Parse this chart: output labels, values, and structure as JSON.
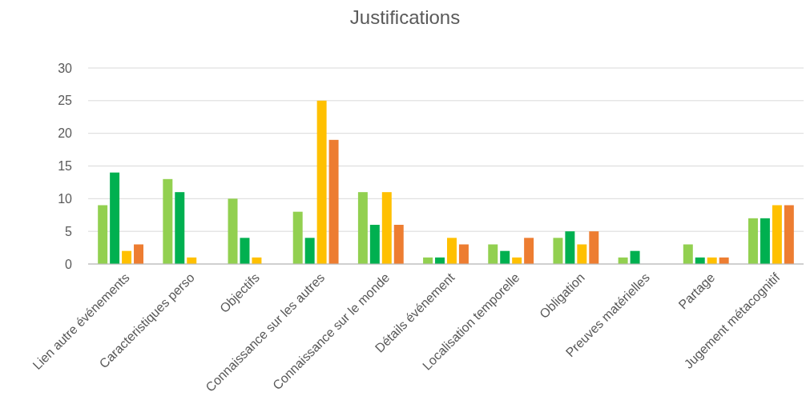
{
  "chart_data": {
    "type": "bar",
    "title": "Justifications",
    "categories": [
      "Lien autre événements",
      "Caracteristiques perso",
      "Objectifs",
      "Connaissance sur les autres",
      "Connaissance sur le monde",
      "Détails événement",
      "Localisation temporelle",
      "Obligation",
      "Preuves matérielles",
      "Partage",
      "Jugement métacognitif"
    ],
    "series": [
      {
        "color": "#92d050",
        "values": [
          9,
          13,
          10,
          8,
          11,
          1,
          3,
          4,
          1,
          3,
          7
        ]
      },
      {
        "color": "#00b050",
        "values": [
          14,
          11,
          4,
          4,
          6,
          1,
          2,
          5,
          2,
          1,
          7
        ]
      },
      {
        "color": "#ffc000",
        "values": [
          2,
          1,
          1,
          25,
          11,
          4,
          1,
          3,
          0,
          1,
          9
        ]
      },
      {
        "color": "#ed7d31",
        "values": [
          3,
          0,
          0,
          19,
          6,
          3,
          4,
          5,
          0,
          1,
          9
        ]
      }
    ],
    "ylim": [
      0,
      30
    ],
    "yticks": [
      0,
      5,
      10,
      15,
      20,
      25,
      30
    ],
    "grid": "y"
  }
}
